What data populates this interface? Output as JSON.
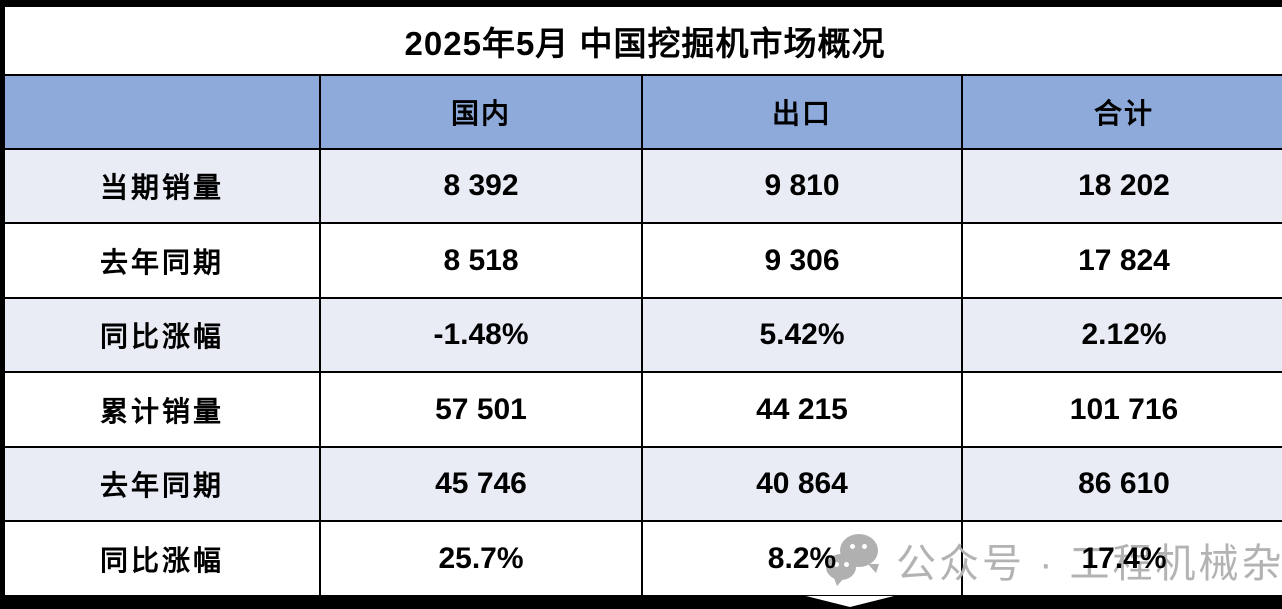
{
  "title": "2025年5月 中国挖掘机市场概况",
  "table": {
    "columns": [
      "",
      "国内",
      "出口",
      "合计"
    ],
    "rows": [
      {
        "cells": [
          "当期销量",
          "8 392",
          "9 810",
          "18 202"
        ]
      },
      {
        "cells": [
          "去年同期",
          "8 518",
          "9 306",
          "17 824"
        ]
      },
      {
        "cells": [
          "同比涨幅",
          "-1.48%",
          "5.42%",
          "2.12%"
        ]
      },
      {
        "cells": [
          "累计销量",
          "57 501",
          "44 215",
          "101 716"
        ]
      },
      {
        "cells": [
          "去年同期",
          "45 746",
          "40 864",
          "86 610"
        ]
      },
      {
        "cells": [
          "同比涨幅",
          "25.7%",
          "8.2%",
          "17.4%"
        ]
      }
    ]
  },
  "watermark": {
    "icon": "wechat-icon",
    "text": "公众号 · 工程机械杂志"
  },
  "colors": {
    "header_bg": "#8EAADB",
    "band_bg": "#E9EBF5",
    "border": "#000000",
    "watermark_gray": "#B3B3B3"
  }
}
